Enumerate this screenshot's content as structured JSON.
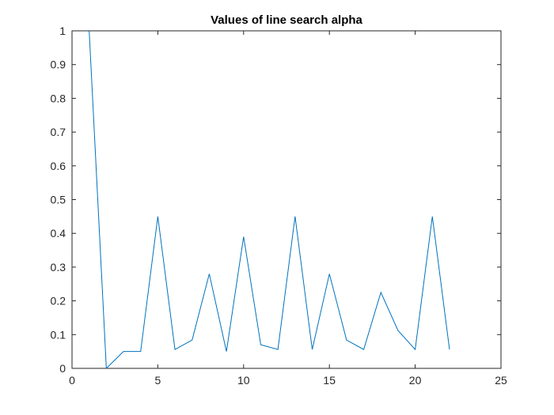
{
  "chart_data": {
    "type": "line",
    "title": "Values of line search alpha",
    "xlabel": "",
    "ylabel": "",
    "xlim": [
      0,
      25
    ],
    "ylim": [
      0,
      1
    ],
    "xticks": [
      0,
      5,
      10,
      15,
      20,
      25
    ],
    "yticks": [
      0,
      0.1,
      0.2,
      0.3,
      0.4,
      0.5,
      0.6,
      0.7,
      0.8,
      0.9,
      1
    ],
    "xtick_labels": [
      "0",
      "5",
      "10",
      "15",
      "20",
      "25"
    ],
    "ytick_labels": [
      "0",
      "0.1",
      "0.2",
      "0.3",
      "0.4",
      "0.5",
      "0.6",
      "0.7",
      "0.8",
      "0.9",
      "1"
    ],
    "grid": false,
    "series": [
      {
        "color": "#0072BD",
        "x": [
          1,
          2,
          3,
          4,
          5,
          6,
          7,
          8,
          9,
          10,
          11,
          12,
          13,
          14,
          15,
          16,
          17,
          18,
          19,
          20,
          21,
          22
        ],
        "y": [
          1.0,
          0.0,
          0.05,
          0.05,
          0.45,
          0.056,
          0.084,
          0.28,
          0.05,
          0.39,
          0.07,
          0.056,
          0.45,
          0.056,
          0.28,
          0.084,
          0.056,
          0.225,
          0.112,
          0.056,
          0.45,
          0.056
        ]
      }
    ]
  }
}
